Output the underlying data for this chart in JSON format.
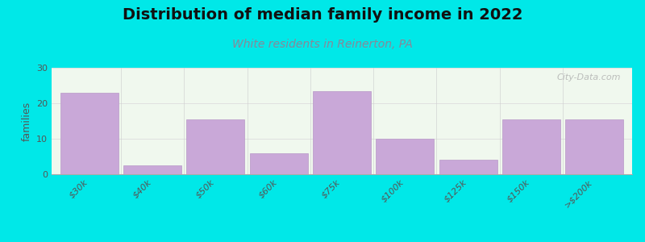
{
  "title": "Distribution of median family income in 2022",
  "subtitle": "White residents in Reinerton, PA",
  "categories": [
    "$30k",
    "$40k",
    "$50k",
    "$60k",
    "$75k",
    "$100k",
    "$125k",
    "$150k",
    ">$200k"
  ],
  "values": [
    23,
    2.5,
    15.5,
    6,
    23.5,
    10,
    4,
    15.5,
    15.5
  ],
  "bar_color": "#c9a8d8",
  "bar_edgecolor": "#b898c8",
  "background_color": "#00e8e8",
  "ylabel": "families",
  "ylim": [
    0,
    30
  ],
  "yticks": [
    0,
    10,
    20,
    30
  ],
  "title_fontsize": 14,
  "subtitle_fontsize": 10,
  "subtitle_color": "#888899",
  "watermark": "City-Data.com"
}
